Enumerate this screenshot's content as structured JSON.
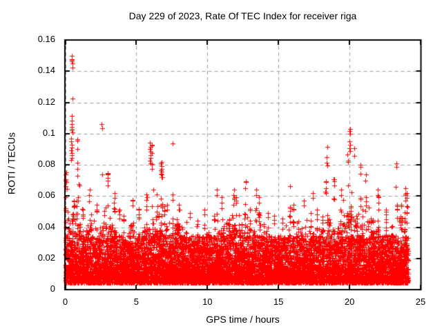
{
  "chart_data": {
    "type": "scatter",
    "title": "Day 229 of 2023, Rate Of TEC Index for receiver riga",
    "xlabel": "GPS time / hours",
    "ylabel": "ROTI / TECUs",
    "xlim": [
      0,
      25
    ],
    "ylim": [
      0,
      0.16
    ],
    "xticks": [
      "0",
      "5",
      "10",
      "15",
      "20",
      "25"
    ],
    "xtick_values": [
      0,
      5,
      10,
      15,
      20,
      25
    ],
    "yticks": [
      "0",
      "0.02",
      "0.04",
      "0.06",
      "0.08",
      "0.1",
      "0.12",
      "0.14",
      "0.16"
    ],
    "ytick_values": [
      0,
      0.02,
      0.04,
      0.06,
      0.08,
      0.1,
      0.12,
      0.14,
      0.16
    ],
    "grid": {
      "visible": true,
      "style": "dashed",
      "color": "#9e9e9e"
    },
    "frame_color": "#000000",
    "marker": {
      "shape": "plus",
      "color": "#ff0000",
      "size": 7
    },
    "series_name": "ROTI",
    "x_data_range": [
      0,
      24.15
    ],
    "y_floor": 0.0045,
    "density_profile": {
      "bin_width": 0.5,
      "bins": [
        {
          "x0": 0.0,
          "top": 0.045,
          "max": 0.075
        },
        {
          "x0": 0.5,
          "top": 0.06,
          "max": 0.097
        },
        {
          "x0": 1.0,
          "top": 0.035,
          "max": 0.052
        },
        {
          "x0": 1.5,
          "top": 0.04,
          "max": 0.065
        },
        {
          "x0": 2.0,
          "top": 0.035,
          "max": 0.055
        },
        {
          "x0": 2.5,
          "top": 0.045,
          "max": 0.075
        },
        {
          "x0": 3.0,
          "top": 0.04,
          "max": 0.063
        },
        {
          "x0": 3.5,
          "top": 0.035,
          "max": 0.052
        },
        {
          "x0": 4.0,
          "top": 0.033,
          "max": 0.048
        },
        {
          "x0": 4.5,
          "top": 0.038,
          "max": 0.058
        },
        {
          "x0": 5.0,
          "top": 0.035,
          "max": 0.052
        },
        {
          "x0": 5.5,
          "top": 0.04,
          "max": 0.062
        },
        {
          "x0": 6.0,
          "top": 0.048,
          "max": 0.094
        },
        {
          "x0": 6.5,
          "top": 0.045,
          "max": 0.082
        },
        {
          "x0": 7.0,
          "top": 0.035,
          "max": 0.055
        },
        {
          "x0": 7.5,
          "top": 0.04,
          "max": 0.062
        },
        {
          "x0": 8.0,
          "top": 0.035,
          "max": 0.055
        },
        {
          "x0": 8.5,
          "top": 0.033,
          "max": 0.05
        },
        {
          "x0": 9.0,
          "top": 0.03,
          "max": 0.045
        },
        {
          "x0": 9.5,
          "top": 0.035,
          "max": 0.052
        },
        {
          "x0": 10.0,
          "top": 0.033,
          "max": 0.048
        },
        {
          "x0": 10.5,
          "top": 0.038,
          "max": 0.065
        },
        {
          "x0": 11.0,
          "top": 0.038,
          "max": 0.06
        },
        {
          "x0": 11.5,
          "top": 0.04,
          "max": 0.065
        },
        {
          "x0": 12.0,
          "top": 0.038,
          "max": 0.06
        },
        {
          "x0": 12.5,
          "top": 0.042,
          "max": 0.07
        },
        {
          "x0": 13.0,
          "top": 0.04,
          "max": 0.065
        },
        {
          "x0": 13.5,
          "top": 0.038,
          "max": 0.06
        },
        {
          "x0": 14.0,
          "top": 0.033,
          "max": 0.05
        },
        {
          "x0": 14.5,
          "top": 0.032,
          "max": 0.048
        },
        {
          "x0": 15.0,
          "top": 0.03,
          "max": 0.046
        },
        {
          "x0": 15.5,
          "top": 0.035,
          "max": 0.054
        },
        {
          "x0": 16.0,
          "top": 0.035,
          "max": 0.055
        },
        {
          "x0": 16.5,
          "top": 0.038,
          "max": 0.058
        },
        {
          "x0": 17.0,
          "top": 0.036,
          "max": 0.063
        },
        {
          "x0": 17.5,
          "top": 0.034,
          "max": 0.052
        },
        {
          "x0": 18.0,
          "top": 0.04,
          "max": 0.07
        },
        {
          "x0": 18.5,
          "top": 0.042,
          "max": 0.072
        },
        {
          "x0": 19.0,
          "top": 0.04,
          "max": 0.065
        },
        {
          "x0": 19.5,
          "top": 0.048,
          "max": 0.088
        },
        {
          "x0": 20.0,
          "top": 0.052,
          "max": 0.092
        },
        {
          "x0": 20.5,
          "top": 0.048,
          "max": 0.08
        },
        {
          "x0": 21.0,
          "top": 0.045,
          "max": 0.075
        },
        {
          "x0": 21.5,
          "top": 0.04,
          "max": 0.065
        },
        {
          "x0": 22.0,
          "top": 0.036,
          "max": 0.06
        },
        {
          "x0": 22.5,
          "top": 0.033,
          "max": 0.052
        },
        {
          "x0": 23.0,
          "top": 0.035,
          "max": 0.055
        },
        {
          "x0": 23.5,
          "top": 0.046,
          "max": 0.066
        },
        {
          "x0": 24.0,
          "w": 0.15,
          "top": 0.048,
          "max": 0.063
        }
      ]
    },
    "outliers": [
      [
        0.45,
        0.15
      ],
      [
        0.46,
        0.1475
      ],
      [
        0.48,
        0.147
      ],
      [
        0.47,
        0.1462
      ],
      [
        0.5,
        0.1448
      ],
      [
        0.49,
        0.1425
      ],
      [
        0.52,
        0.1225
      ],
      [
        0.46,
        0.1112
      ],
      [
        0.44,
        0.1085
      ],
      [
        0.47,
        0.106
      ],
      [
        0.45,
        0.1045
      ],
      [
        0.48,
        0.1032
      ],
      [
        0.44,
        0.1022
      ],
      [
        0.49,
        0.1008
      ],
      [
        0.4,
        0.0968
      ],
      [
        0.42,
        0.0952
      ],
      [
        0.45,
        0.0928
      ],
      [
        0.47,
        0.091
      ],
      [
        0.43,
        0.0892
      ],
      [
        0.46,
        0.0875
      ],
      [
        0.44,
        0.086
      ],
      [
        0.48,
        0.0845
      ],
      [
        0.41,
        0.0832
      ],
      [
        0.05,
        0.0752
      ],
      [
        0.08,
        0.069
      ],
      [
        0.03,
        0.0662
      ],
      [
        0.1,
        0.0645
      ],
      [
        2.57,
        0.1062
      ],
      [
        2.6,
        0.1035
      ],
      [
        2.58,
        0.074
      ],
      [
        5.97,
        0.094
      ],
      [
        5.99,
        0.0915
      ],
      [
        5.96,
        0.0902
      ],
      [
        6.0,
        0.0885
      ],
      [
        5.98,
        0.0862
      ],
      [
        6.01,
        0.0845
      ],
      [
        5.97,
        0.0825
      ],
      [
        5.99,
        0.0808
      ],
      [
        6.78,
        0.0818
      ],
      [
        6.8,
        0.079
      ],
      [
        6.76,
        0.0772
      ],
      [
        6.79,
        0.0755
      ],
      [
        6.77,
        0.0738
      ],
      [
        6.81,
        0.072
      ],
      [
        7.57,
        0.0937
      ],
      [
        12.72,
        0.0694
      ],
      [
        15.83,
        0.0663
      ],
      [
        18.42,
        0.0915
      ],
      [
        18.4,
        0.085
      ],
      [
        18.41,
        0.0812
      ],
      [
        18.43,
        0.0795
      ],
      [
        20.02,
        0.1032
      ],
      [
        20.0,
        0.1015
      ],
      [
        20.04,
        0.0998
      ],
      [
        20.01,
        0.0952
      ],
      [
        20.03,
        0.0928
      ],
      [
        19.99,
        0.0905
      ],
      [
        20.05,
        0.0888
      ],
      [
        23.28,
        0.081
      ],
      [
        23.3,
        0.0785
      ],
      [
        23.26,
        0.0658
      ]
    ]
  }
}
